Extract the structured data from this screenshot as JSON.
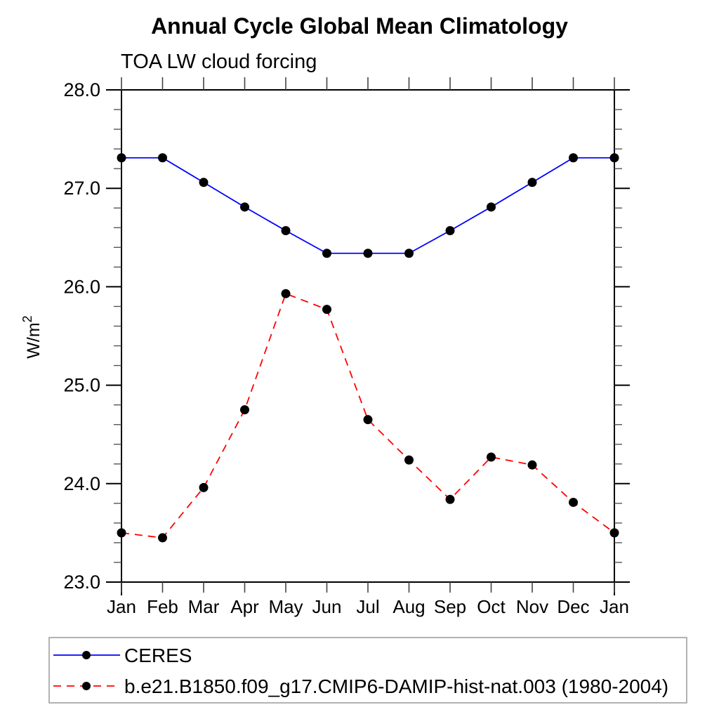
{
  "title": "Annual Cycle Global Mean Climatology",
  "subtitle": "TOA LW cloud forcing",
  "ylabel_base": "W/m",
  "ylabel_sup": "2",
  "chart_data": {
    "type": "line",
    "categories": [
      "Jan",
      "Feb",
      "Mar",
      "Apr",
      "May",
      "Jun",
      "Jul",
      "Aug",
      "Sep",
      "Oct",
      "Nov",
      "Dec",
      "Jan"
    ],
    "series": [
      {
        "name": "CERES",
        "color": "#0000ff",
        "line_style": "solid",
        "marker": "black-circle",
        "values": [
          27.31,
          27.31,
          27.06,
          26.81,
          26.57,
          26.34,
          26.34,
          26.34,
          26.57,
          26.81,
          27.06,
          27.31,
          27.31
        ]
      },
      {
        "name": "b.e21.B1850.f09_g17.CMIP6-DAMIP-hist-nat.003 (1980-2004)",
        "color": "#ff0000",
        "line_style": "dashed",
        "marker": "black-circle",
        "values": [
          23.5,
          23.45,
          23.96,
          24.75,
          25.93,
          25.77,
          24.65,
          24.24,
          23.84,
          24.27,
          24.19,
          23.81,
          23.5
        ]
      }
    ],
    "ylim": [
      23.0,
      28.0
    ],
    "ytick_major_step": 1.0,
    "ytick_minor_step": 0.2,
    "ytick_labels": [
      "28.0",
      "27.0",
      "26.0",
      "25.0",
      "24.0",
      "23.0"
    ],
    "grid": false,
    "legend_position": "bottom",
    "marker_color": "#000000"
  }
}
